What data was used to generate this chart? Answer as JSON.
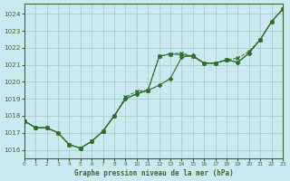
{
  "title": "Graphe pression niveau de la mer (hPa)",
  "background_color": "#cce8f0",
  "grid_color": "#aad4cc",
  "line_color": "#2d6e2d",
  "xlim": [
    0,
    23
  ],
  "ylim": [
    1015.5,
    1024.6
  ],
  "yticks": [
    1016,
    1017,
    1018,
    1019,
    1020,
    1021,
    1022,
    1023,
    1024
  ],
  "xticks": [
    0,
    1,
    2,
    3,
    4,
    5,
    6,
    7,
    8,
    9,
    10,
    11,
    12,
    13,
    14,
    15,
    16,
    17,
    18,
    19,
    20,
    21,
    22,
    23
  ],
  "series1": [
    1017.7,
    1017.3,
    1017.3,
    1017.0,
    1016.3,
    1016.1,
    1016.5,
    1017.1,
    1018.0,
    1019.0,
    1019.3,
    1019.5,
    1021.5,
    1021.65,
    1021.6,
    1021.5,
    1021.1,
    1021.1,
    1021.3,
    1021.15,
    1021.7,
    1022.5,
    1023.55,
    1024.3
  ],
  "series2": [
    1017.7,
    1017.3,
    1017.3,
    1017.0,
    1016.3,
    1016.1,
    1016.5,
    1017.1,
    1018.0,
    1019.0,
    1019.3,
    1019.5,
    1019.8,
    1020.2,
    1021.45,
    1021.55,
    1021.1,
    1021.1,
    1021.3,
    1021.15,
    1021.7,
    1022.5,
    1023.55,
    1024.3
  ],
  "series3": [
    1017.7,
    1017.3,
    1017.3,
    1017.0,
    1016.3,
    1016.1,
    1016.5,
    1017.1,
    1018.0,
    1019.1,
    1019.45,
    1019.5,
    1021.5,
    1021.65,
    1021.7,
    1021.5,
    1021.1,
    1021.1,
    1021.3,
    1021.4,
    1021.8,
    1022.5,
    1023.55,
    1024.3
  ]
}
